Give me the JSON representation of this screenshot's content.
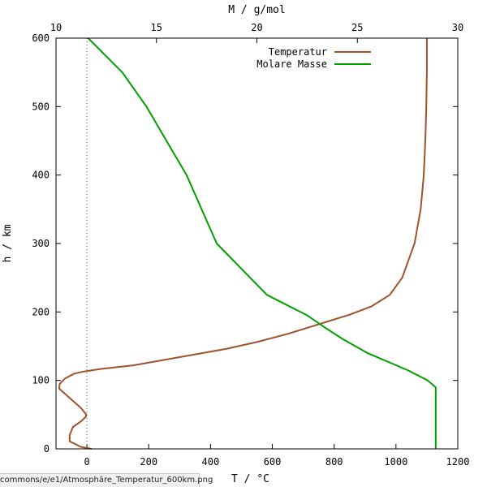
{
  "chart_data": {
    "type": "line",
    "title": "",
    "xlabel": "T / °C",
    "x2label": "M / g/mol",
    "ylabel": "h / km",
    "xlim": [
      -100,
      1200
    ],
    "x2lim": [
      10,
      30
    ],
    "ylim": [
      0,
      600
    ],
    "xticks": [
      0,
      200,
      400,
      600,
      800,
      1000,
      1200
    ],
    "x2ticks": [
      10,
      15,
      20,
      25,
      30
    ],
    "yticks": [
      0,
      100,
      200,
      300,
      400,
      500,
      600
    ],
    "grid": false,
    "legend_position": "top-right",
    "reference_line": {
      "axis": "x",
      "value": 0,
      "style": "dotted"
    },
    "series": [
      {
        "name": "Temperatur",
        "axis": "bottom",
        "color": "#a0522d",
        "points": [
          [
            15,
            0
          ],
          [
            -20,
            3
          ],
          [
            -56,
            11
          ],
          [
            -56,
            20
          ],
          [
            -45,
            32
          ],
          [
            -20,
            40
          ],
          [
            -3,
            47
          ],
          [
            -2,
            50
          ],
          [
            -20,
            60
          ],
          [
            -50,
            72
          ],
          [
            -75,
            82
          ],
          [
            -90,
            88
          ],
          [
            -88,
            95
          ],
          [
            -70,
            103
          ],
          [
            -40,
            110
          ],
          [
            -10,
            113
          ],
          [
            50,
            117
          ],
          [
            150,
            122
          ],
          [
            250,
            130
          ],
          [
            350,
            138
          ],
          [
            450,
            146
          ],
          [
            550,
            156
          ],
          [
            650,
            168
          ],
          [
            750,
            182
          ],
          [
            850,
            196
          ],
          [
            920,
            208
          ],
          [
            980,
            225
          ],
          [
            1020,
            250
          ],
          [
            1060,
            300
          ],
          [
            1080,
            350
          ],
          [
            1090,
            400
          ],
          [
            1095,
            450
          ],
          [
            1098,
            500
          ],
          [
            1100,
            550
          ],
          [
            1100,
            600
          ]
        ]
      },
      {
        "name": "Molare Masse",
        "axis": "top",
        "color": "#00a000",
        "points": [
          [
            28.9,
            0
          ],
          [
            28.9,
            90
          ],
          [
            28.5,
            100
          ],
          [
            27.5,
            115
          ],
          [
            25.5,
            140
          ],
          [
            24.3,
            160
          ],
          [
            23.5,
            175
          ],
          [
            22.5,
            195
          ],
          [
            20.5,
            225
          ],
          [
            18,
            300
          ],
          [
            16.5,
            400
          ],
          [
            15.5,
            450
          ],
          [
            14.5,
            500
          ],
          [
            13.3,
            550
          ],
          [
            11.6,
            600
          ]
        ]
      }
    ]
  },
  "footer_url": "commons/e/e1/Atmosphäre_Temperatur_600km.png"
}
